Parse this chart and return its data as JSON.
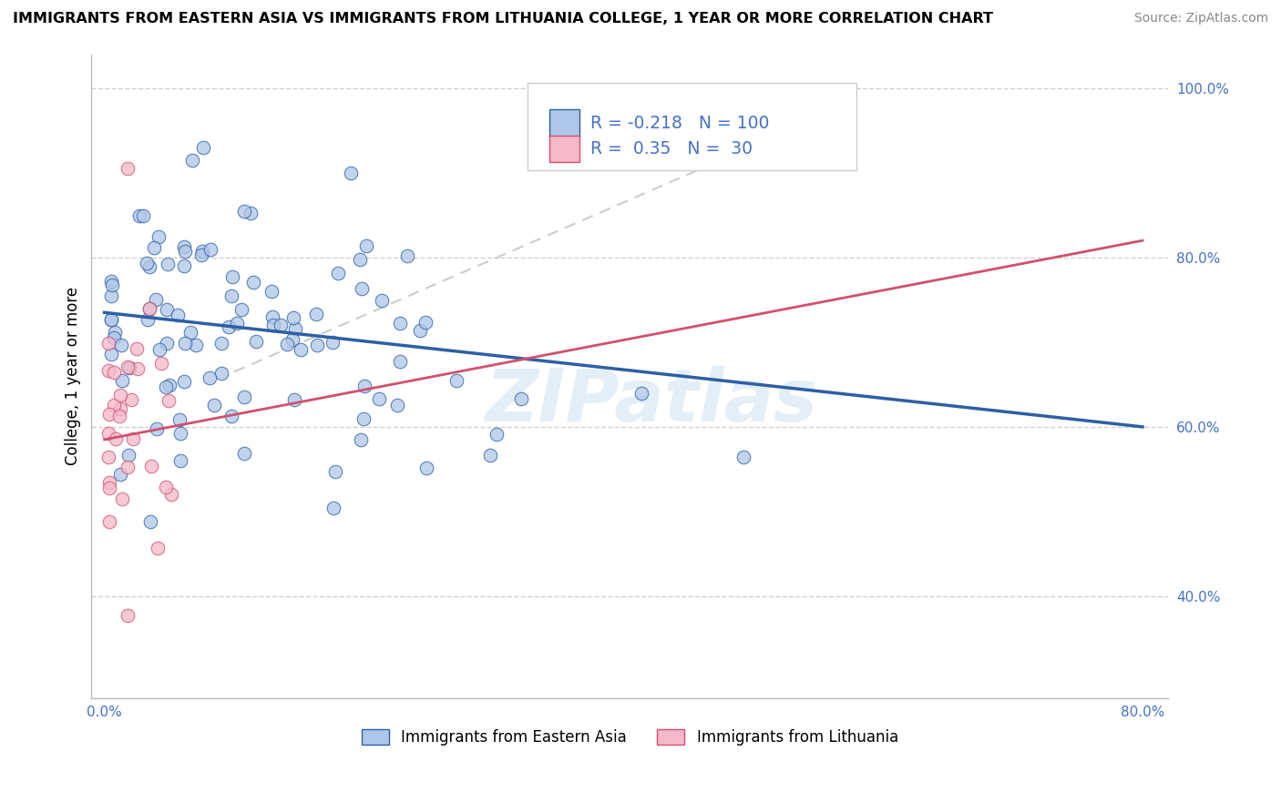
{
  "title": "IMMIGRANTS FROM EASTERN ASIA VS IMMIGRANTS FROM LITHUANIA COLLEGE, 1 YEAR OR MORE CORRELATION CHART",
  "source": "Source: ZipAtlas.com",
  "ylabel": "College, 1 year or more",
  "legend_label_1": "Immigrants from Eastern Asia",
  "legend_label_2": "Immigrants from Lithuania",
  "R1": -0.218,
  "N1": 100,
  "R2": 0.35,
  "N2": 30,
  "color_blue": "#aec6e8",
  "color_blue_line": "#2e5fa3",
  "color_pink": "#f5b8c8",
  "color_pink_line": "#d05070",
  "color_diag_line": "#cccccc",
  "xlim": [
    -0.01,
    0.82
  ],
  "ylim": [
    0.28,
    1.04
  ],
  "yticks": [
    0.4,
    0.6,
    0.8,
    1.0
  ],
  "yticklabels": [
    "40.0%",
    "60.0%",
    "80.0%",
    "100.0%"
  ],
  "blue_line_x0": 0.0,
  "blue_line_x1": 0.8,
  "blue_line_y0": 0.735,
  "blue_line_y1": 0.6,
  "pink_line_x0": 0.0,
  "pink_line_x1": 0.8,
  "pink_line_y0": 0.585,
  "pink_line_y1": 0.82,
  "diag_line_x0": 0.1,
  "diag_line_x1": 0.55,
  "diag_line_y0": 0.665,
  "diag_line_y1": 0.965,
  "watermark": "ZIPatlas",
  "background_color": "#ffffff",
  "grid_color": "#d0d0d0",
  "dot_size": 110
}
